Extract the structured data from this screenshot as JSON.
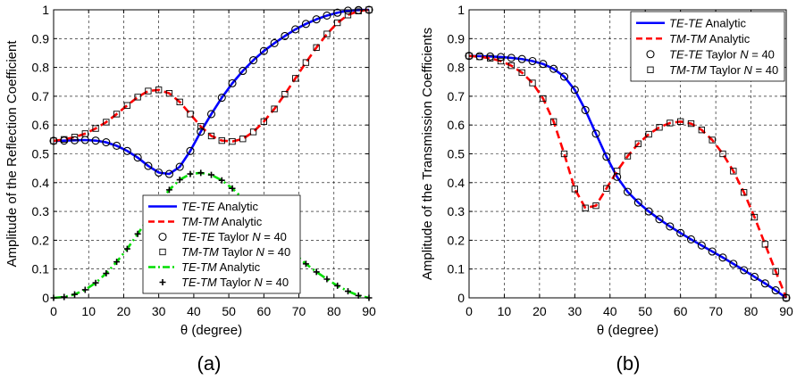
{
  "chart_data": [
    {
      "type": "line",
      "caption": "(a)",
      "xlabel": "θ (degree)",
      "ylabel": "Amplitude of the Reflection Coefficient",
      "xlim": [
        0,
        90
      ],
      "ylim": [
        0,
        1
      ],
      "xticks": [
        0,
        10,
        20,
        30,
        40,
        50,
        60,
        70,
        80,
        90
      ],
      "yticks": [
        0,
        0.1,
        0.2,
        0.3,
        0.4,
        0.5,
        0.6,
        0.7,
        0.8,
        0.9,
        1
      ],
      "xtick_labels": [
        "0",
        "10",
        "20",
        "30",
        "40",
        "50",
        "60",
        "70",
        "80",
        "90"
      ],
      "ytick_labels": [
        "0",
        "0.1",
        "0.2",
        "0.3",
        "0.4",
        "0.5",
        "0.6",
        "0.7",
        "0.8",
        "0.9",
        "1"
      ],
      "grid": true,
      "legend_position": "bottom-right",
      "series": [
        {
          "name": "TE-TE Analytic",
          "legend": {
            "italic": "TE-TE",
            "rest": " Analytic"
          },
          "style": "solid",
          "color": "#0000ff",
          "marker": "none",
          "x": [
            0,
            3,
            6,
            9,
            12,
            15,
            18,
            21,
            24,
            27,
            30,
            33,
            36,
            39,
            42,
            45,
            48,
            51,
            54,
            57,
            60,
            63,
            66,
            69,
            72,
            75,
            78,
            81,
            84,
            87,
            90
          ],
          "y": [
            0.545,
            0.546,
            0.547,
            0.548,
            0.546,
            0.54,
            0.528,
            0.51,
            0.487,
            0.458,
            0.435,
            0.43,
            0.455,
            0.51,
            0.577,
            0.638,
            0.695,
            0.745,
            0.788,
            0.825,
            0.857,
            0.884,
            0.909,
            0.932,
            0.951,
            0.967,
            0.98,
            0.99,
            0.997,
            0.999,
            1.0
          ]
        },
        {
          "name": "TM-TM Analytic",
          "legend": {
            "italic": "TM-TM",
            "rest": " Analytic"
          },
          "style": "dashed",
          "color": "#ff0000",
          "marker": "none",
          "x": [
            0,
            3,
            6,
            9,
            12,
            15,
            18,
            21,
            24,
            27,
            30,
            33,
            36,
            39,
            42,
            45,
            48,
            51,
            54,
            57,
            60,
            63,
            66,
            69,
            72,
            75,
            78,
            81,
            84,
            87,
            90
          ],
          "y": [
            0.545,
            0.55,
            0.558,
            0.57,
            0.588,
            0.61,
            0.638,
            0.668,
            0.697,
            0.718,
            0.722,
            0.71,
            0.68,
            0.638,
            0.595,
            0.562,
            0.546,
            0.543,
            0.552,
            0.576,
            0.612,
            0.656,
            0.707,
            0.762,
            0.817,
            0.869,
            0.916,
            0.955,
            0.982,
            0.996,
            1.0
          ]
        },
        {
          "name": "TE-TE Taylor N = 40",
          "legend": {
            "italic": "TE-TE",
            "rest": " Taylor ",
            "italic2": "N",
            "rest2": " = 40"
          },
          "style": "none",
          "color": "#000000",
          "marker": "circle",
          "x": [
            0,
            3,
            6,
            9,
            12,
            15,
            18,
            21,
            24,
            27,
            30,
            33,
            36,
            39,
            42,
            45,
            48,
            51,
            54,
            57,
            60,
            63,
            66,
            69,
            72,
            75,
            78,
            81,
            84,
            87,
            90
          ],
          "y": [
            0.545,
            0.546,
            0.547,
            0.548,
            0.546,
            0.54,
            0.528,
            0.51,
            0.487,
            0.458,
            0.435,
            0.43,
            0.455,
            0.51,
            0.577,
            0.638,
            0.695,
            0.745,
            0.788,
            0.825,
            0.857,
            0.884,
            0.909,
            0.932,
            0.951,
            0.967,
            0.98,
            0.99,
            0.997,
            0.999,
            1.0
          ]
        },
        {
          "name": "TM-TM Taylor N = 40",
          "legend": {
            "italic": "TM-TM",
            "rest": " Taylor ",
            "italic2": "N",
            "rest2": " = 40"
          },
          "style": "none",
          "color": "#000000",
          "marker": "square",
          "x": [
            0,
            3,
            6,
            9,
            12,
            15,
            18,
            21,
            24,
            27,
            30,
            33,
            36,
            39,
            42,
            45,
            48,
            51,
            54,
            57,
            60,
            63,
            66,
            69,
            72,
            75,
            78,
            81,
            84,
            87,
            90
          ],
          "y": [
            0.545,
            0.55,
            0.558,
            0.57,
            0.588,
            0.61,
            0.638,
            0.668,
            0.697,
            0.718,
            0.722,
            0.71,
            0.68,
            0.638,
            0.595,
            0.562,
            0.546,
            0.543,
            0.552,
            0.576,
            0.612,
            0.656,
            0.707,
            0.762,
            0.817,
            0.869,
            0.916,
            0.955,
            0.982,
            0.996,
            1.0
          ]
        },
        {
          "name": "TE-TM Analytic",
          "legend": {
            "italic": "TE-TM",
            "rest": " Analytic"
          },
          "style": "dashdot",
          "color": "#00dd00",
          "marker": "none",
          "x": [
            0,
            3,
            6,
            9,
            12,
            15,
            18,
            21,
            24,
            27,
            30,
            33,
            36,
            39,
            42,
            45,
            48,
            51,
            54,
            57,
            60,
            63,
            66,
            69,
            72,
            75,
            78,
            81,
            84,
            87,
            90
          ],
          "y": [
            0.0,
            0.003,
            0.012,
            0.028,
            0.052,
            0.085,
            0.125,
            0.17,
            0.222,
            0.275,
            0.328,
            0.375,
            0.41,
            0.43,
            0.434,
            0.427,
            0.408,
            0.38,
            0.345,
            0.305,
            0.265,
            0.225,
            0.187,
            0.15,
            0.118,
            0.09,
            0.065,
            0.042,
            0.023,
            0.008,
            0.0
          ]
        },
        {
          "name": "TE-TM Taylor N = 40",
          "legend": {
            "italic": "TE-TM",
            "rest": " Taylor ",
            "italic2": "N",
            "rest2": " = 40"
          },
          "style": "none",
          "color": "#000000",
          "marker": "plus",
          "x": [
            0,
            3,
            6,
            9,
            12,
            15,
            18,
            21,
            24,
            27,
            30,
            33,
            36,
            39,
            42,
            45,
            48,
            51,
            54,
            57,
            60,
            63,
            66,
            69,
            72,
            75,
            78,
            81,
            84,
            87,
            90
          ],
          "y": [
            0.0,
            0.003,
            0.012,
            0.028,
            0.052,
            0.085,
            0.125,
            0.17,
            0.222,
            0.275,
            0.328,
            0.375,
            0.41,
            0.43,
            0.434,
            0.427,
            0.408,
            0.38,
            0.345,
            0.305,
            0.265,
            0.225,
            0.187,
            0.15,
            0.118,
            0.09,
            0.065,
            0.042,
            0.023,
            0.008,
            0.0
          ]
        }
      ]
    },
    {
      "type": "line",
      "caption": "(b)",
      "xlabel": "θ (degree)",
      "ylabel": "Amplitude of the Transmission Coefficients",
      "xlim": [
        0,
        90
      ],
      "ylim": [
        0,
        1
      ],
      "xticks": [
        0,
        10,
        20,
        30,
        40,
        50,
        60,
        70,
        80,
        90
      ],
      "yticks": [
        0,
        0.1,
        0.2,
        0.3,
        0.4,
        0.5,
        0.6,
        0.7,
        0.8,
        0.9,
        1
      ],
      "xtick_labels": [
        "0",
        "10",
        "20",
        "30",
        "40",
        "50",
        "60",
        "70",
        "80",
        "90"
      ],
      "ytick_labels": [
        "0",
        "0.1",
        "0.2",
        "0.3",
        "0.4",
        "0.5",
        "0.6",
        "0.7",
        "0.8",
        "0.9",
        "1"
      ],
      "grid": true,
      "legend_position": "top-right",
      "series": [
        {
          "name": "TE-TE Analytic",
          "legend": {
            "italic": "TE-TE",
            "rest": " Analytic"
          },
          "style": "solid",
          "color": "#0000ff",
          "marker": "none",
          "x": [
            0,
            3,
            6,
            9,
            12,
            15,
            18,
            21,
            24,
            27,
            30,
            33,
            36,
            39,
            42,
            45,
            48,
            51,
            54,
            57,
            60,
            63,
            66,
            69,
            72,
            75,
            78,
            81,
            84,
            87,
            90
          ],
          "y": [
            0.84,
            0.839,
            0.838,
            0.836,
            0.833,
            0.829,
            0.822,
            0.812,
            0.795,
            0.768,
            0.722,
            0.652,
            0.57,
            0.49,
            0.42,
            0.368,
            0.331,
            0.3,
            0.273,
            0.248,
            0.225,
            0.203,
            0.182,
            0.161,
            0.14,
            0.118,
            0.096,
            0.073,
            0.05,
            0.026,
            0.0
          ]
        },
        {
          "name": "TM-TM Analytic",
          "legend": {
            "italic": "TM-TM",
            "rest": " Analytic"
          },
          "style": "dashed",
          "color": "#ff0000",
          "marker": "none",
          "x": [
            0,
            3,
            6,
            9,
            12,
            15,
            18,
            21,
            24,
            27,
            30,
            33,
            36,
            39,
            42,
            45,
            48,
            51,
            54,
            57,
            60,
            63,
            66,
            69,
            72,
            75,
            78,
            81,
            84,
            87,
            90
          ],
          "y": [
            0.84,
            0.837,
            0.832,
            0.822,
            0.806,
            0.782,
            0.746,
            0.692,
            0.612,
            0.5,
            0.378,
            0.312,
            0.32,
            0.38,
            0.44,
            0.492,
            0.535,
            0.568,
            0.592,
            0.607,
            0.612,
            0.605,
            0.583,
            0.548,
            0.5,
            0.44,
            0.366,
            0.28,
            0.186,
            0.092,
            0.0
          ]
        },
        {
          "name": "TE-TE Taylor N = 40",
          "legend": {
            "italic": "TE-TE",
            "rest": " Taylor ",
            "italic2": "N",
            "rest2": " = 40"
          },
          "style": "none",
          "color": "#000000",
          "marker": "circle",
          "x": [
            0,
            3,
            6,
            9,
            12,
            15,
            18,
            21,
            24,
            27,
            30,
            33,
            36,
            39,
            42,
            45,
            48,
            51,
            54,
            57,
            60,
            63,
            66,
            69,
            72,
            75,
            78,
            81,
            84,
            87,
            90
          ],
          "y": [
            0.84,
            0.839,
            0.838,
            0.836,
            0.833,
            0.829,
            0.822,
            0.812,
            0.795,
            0.768,
            0.722,
            0.652,
            0.57,
            0.49,
            0.42,
            0.368,
            0.331,
            0.3,
            0.273,
            0.248,
            0.225,
            0.203,
            0.182,
            0.161,
            0.14,
            0.118,
            0.096,
            0.073,
            0.05,
            0.026,
            0.0
          ]
        },
        {
          "name": "TM-TM Taylor N = 40",
          "legend": {
            "italic": "TM-TM",
            "rest": " Taylor ",
            "italic2": "N",
            "rest2": " = 40"
          },
          "style": "none",
          "color": "#000000",
          "marker": "square",
          "x": [
            0,
            3,
            6,
            9,
            12,
            15,
            18,
            21,
            24,
            27,
            30,
            33,
            36,
            39,
            42,
            45,
            48,
            51,
            54,
            57,
            60,
            63,
            66,
            69,
            72,
            75,
            78,
            81,
            84,
            87,
            90
          ],
          "y": [
            0.84,
            0.837,
            0.832,
            0.822,
            0.806,
            0.782,
            0.746,
            0.692,
            0.612,
            0.5,
            0.378,
            0.312,
            0.32,
            0.38,
            0.44,
            0.492,
            0.535,
            0.568,
            0.592,
            0.607,
            0.612,
            0.605,
            0.583,
            0.548,
            0.5,
            0.44,
            0.366,
            0.28,
            0.186,
            0.092,
            0.0
          ]
        }
      ]
    }
  ]
}
